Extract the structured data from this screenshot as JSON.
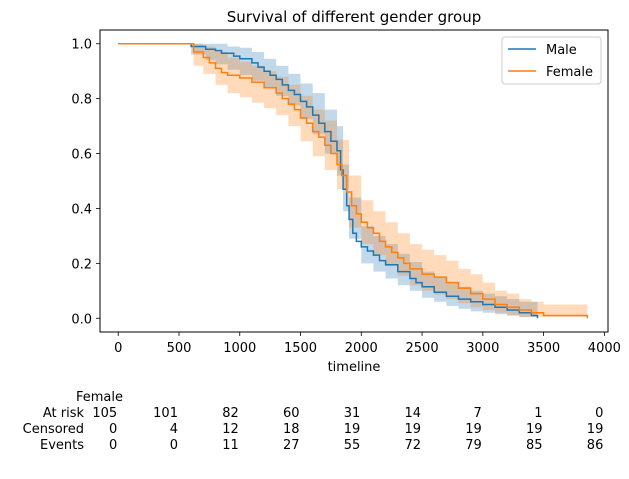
{
  "chart_data": {
    "type": "line",
    "subtype": "kaplan-meier survival",
    "title": "Survival of different gender group",
    "xlabel": "timeline",
    "ylabel": "",
    "xlim": [
      -150,
      4030
    ],
    "ylim": [
      -0.05,
      1.05
    ],
    "xticks": [
      0,
      500,
      1000,
      1500,
      2000,
      2500,
      3000,
      3500,
      4000
    ],
    "yticks": [
      0.0,
      0.2,
      0.4,
      0.6,
      0.8,
      1.0
    ],
    "grid": false,
    "legend_position": "top-right",
    "series": [
      {
        "name": "Male",
        "color": "#1f77b4",
        "band_color": "#1f77b4",
        "points": [
          [
            0,
            1.0
          ],
          [
            580,
            1.0
          ],
          [
            600,
            0.99
          ],
          [
            700,
            0.99
          ],
          [
            720,
            0.98
          ],
          [
            800,
            0.975
          ],
          [
            850,
            0.965
          ],
          [
            950,
            0.955
          ],
          [
            1000,
            0.945
          ],
          [
            1100,
            0.93
          ],
          [
            1150,
            0.915
          ],
          [
            1200,
            0.9
          ],
          [
            1250,
            0.885
          ],
          [
            1300,
            0.87
          ],
          [
            1350,
            0.85
          ],
          [
            1400,
            0.83
          ],
          [
            1450,
            0.815
          ],
          [
            1500,
            0.79
          ],
          [
            1550,
            0.77
          ],
          [
            1600,
            0.74
          ],
          [
            1650,
            0.71
          ],
          [
            1700,
            0.68
          ],
          [
            1750,
            0.645
          ],
          [
            1800,
            0.61
          ],
          [
            1830,
            0.54
          ],
          [
            1850,
            0.47
          ],
          [
            1880,
            0.41
          ],
          [
            1900,
            0.36
          ],
          [
            1930,
            0.31
          ],
          [
            1960,
            0.28
          ],
          [
            2000,
            0.26
          ],
          [
            2050,
            0.245
          ],
          [
            2100,
            0.23
          ],
          [
            2150,
            0.21
          ],
          [
            2200,
            0.195
          ],
          [
            2300,
            0.17
          ],
          [
            2400,
            0.145
          ],
          [
            2450,
            0.13
          ],
          [
            2500,
            0.115
          ],
          [
            2600,
            0.095
          ],
          [
            2700,
            0.08
          ],
          [
            2800,
            0.07
          ],
          [
            2900,
            0.06
          ],
          [
            3000,
            0.05
          ],
          [
            3100,
            0.04
          ],
          [
            3200,
            0.03
          ],
          [
            3300,
            0.02
          ],
          [
            3400,
            0.01
          ],
          [
            3450,
            0.0
          ]
        ],
        "ci_upper": [
          [
            0,
            1.0
          ],
          [
            580,
            1.0
          ],
          [
            600,
            1.0
          ],
          [
            720,
            1.0
          ],
          [
            800,
            1.0
          ],
          [
            900,
            0.99
          ],
          [
            1000,
            0.985
          ],
          [
            1100,
            0.97
          ],
          [
            1200,
            0.945
          ],
          [
            1300,
            0.92
          ],
          [
            1400,
            0.89
          ],
          [
            1500,
            0.855
          ],
          [
            1600,
            0.82
          ],
          [
            1700,
            0.76
          ],
          [
            1800,
            0.7
          ],
          [
            1850,
            0.56
          ],
          [
            1900,
            0.44
          ],
          [
            2000,
            0.335
          ],
          [
            2100,
            0.3
          ],
          [
            2200,
            0.27
          ],
          [
            2300,
            0.235
          ],
          [
            2400,
            0.205
          ],
          [
            2500,
            0.17
          ],
          [
            2600,
            0.15
          ],
          [
            2700,
            0.13
          ],
          [
            2800,
            0.115
          ],
          [
            2900,
            0.1
          ],
          [
            3000,
            0.09
          ],
          [
            3100,
            0.08
          ],
          [
            3200,
            0.07
          ],
          [
            3300,
            0.06
          ],
          [
            3450,
            0.05
          ]
        ],
        "ci_lower": [
          [
            0,
            1.0
          ],
          [
            580,
            1.0
          ],
          [
            600,
            0.96
          ],
          [
            720,
            0.94
          ],
          [
            800,
            0.925
          ],
          [
            900,
            0.905
          ],
          [
            1000,
            0.885
          ],
          [
            1100,
            0.865
          ],
          [
            1200,
            0.84
          ],
          [
            1300,
            0.81
          ],
          [
            1400,
            0.775
          ],
          [
            1500,
            0.725
          ],
          [
            1600,
            0.67
          ],
          [
            1700,
            0.6
          ],
          [
            1800,
            0.52
          ],
          [
            1850,
            0.39
          ],
          [
            1900,
            0.29
          ],
          [
            2000,
            0.2
          ],
          [
            2100,
            0.17
          ],
          [
            2200,
            0.145
          ],
          [
            2300,
            0.12
          ],
          [
            2400,
            0.1
          ],
          [
            2500,
            0.075
          ],
          [
            2600,
            0.06
          ],
          [
            2700,
            0.045
          ],
          [
            2800,
            0.035
          ],
          [
            2900,
            0.025
          ],
          [
            3000,
            0.02
          ],
          [
            3100,
            0.015
          ],
          [
            3200,
            0.01
          ],
          [
            3300,
            0.005
          ],
          [
            3450,
            0.0
          ]
        ]
      },
      {
        "name": "Female",
        "color": "#ff7f0e",
        "band_color": "#ff7f0e",
        "points": [
          [
            0,
            1.0
          ],
          [
            600,
            1.0
          ],
          [
            620,
            0.97
          ],
          [
            700,
            0.95
          ],
          [
            750,
            0.93
          ],
          [
            800,
            0.91
          ],
          [
            850,
            0.895
          ],
          [
            900,
            0.885
          ],
          [
            1000,
            0.875
          ],
          [
            1100,
            0.86
          ],
          [
            1200,
            0.84
          ],
          [
            1300,
            0.82
          ],
          [
            1350,
            0.8
          ],
          [
            1400,
            0.78
          ],
          [
            1450,
            0.76
          ],
          [
            1500,
            0.73
          ],
          [
            1550,
            0.71
          ],
          [
            1600,
            0.68
          ],
          [
            1650,
            0.66
          ],
          [
            1700,
            0.63
          ],
          [
            1750,
            0.6
          ],
          [
            1800,
            0.56
          ],
          [
            1840,
            0.52
          ],
          [
            1880,
            0.46
          ],
          [
            1920,
            0.41
          ],
          [
            1960,
            0.38
          ],
          [
            2000,
            0.35
          ],
          [
            2050,
            0.33
          ],
          [
            2100,
            0.31
          ],
          [
            2150,
            0.28
          ],
          [
            2200,
            0.26
          ],
          [
            2250,
            0.24
          ],
          [
            2300,
            0.22
          ],
          [
            2350,
            0.2
          ],
          [
            2400,
            0.18
          ],
          [
            2500,
            0.16
          ],
          [
            2600,
            0.15
          ],
          [
            2700,
            0.13
          ],
          [
            2800,
            0.11
          ],
          [
            2900,
            0.09
          ],
          [
            3000,
            0.07
          ],
          [
            3100,
            0.05
          ],
          [
            3200,
            0.04
          ],
          [
            3300,
            0.03
          ],
          [
            3400,
            0.02
          ],
          [
            3500,
            0.01
          ],
          [
            3850,
            0.01
          ],
          [
            3860,
            0.0
          ]
        ],
        "ci_upper": [
          [
            0,
            1.0
          ],
          [
            600,
            1.0
          ],
          [
            620,
            1.0
          ],
          [
            700,
            0.99
          ],
          [
            800,
            0.97
          ],
          [
            900,
            0.95
          ],
          [
            1000,
            0.935
          ],
          [
            1100,
            0.92
          ],
          [
            1200,
            0.9
          ],
          [
            1300,
            0.88
          ],
          [
            1400,
            0.85
          ],
          [
            1500,
            0.81
          ],
          [
            1600,
            0.76
          ],
          [
            1700,
            0.72
          ],
          [
            1800,
            0.65
          ],
          [
            1900,
            0.52
          ],
          [
            2000,
            0.43
          ],
          [
            2100,
            0.39
          ],
          [
            2200,
            0.35
          ],
          [
            2300,
            0.31
          ],
          [
            2400,
            0.27
          ],
          [
            2500,
            0.25
          ],
          [
            2600,
            0.23
          ],
          [
            2700,
            0.21
          ],
          [
            2800,
            0.18
          ],
          [
            2900,
            0.16
          ],
          [
            3000,
            0.13
          ],
          [
            3100,
            0.1
          ],
          [
            3200,
            0.09
          ],
          [
            3300,
            0.07
          ],
          [
            3400,
            0.06
          ],
          [
            3500,
            0.05
          ],
          [
            3860,
            0.05
          ]
        ],
        "ci_lower": [
          [
            0,
            1.0
          ],
          [
            600,
            1.0
          ],
          [
            620,
            0.92
          ],
          [
            700,
            0.89
          ],
          [
            800,
            0.85
          ],
          [
            900,
            0.82
          ],
          [
            1000,
            0.805
          ],
          [
            1100,
            0.785
          ],
          [
            1200,
            0.765
          ],
          [
            1300,
            0.74
          ],
          [
            1400,
            0.7
          ],
          [
            1500,
            0.645
          ],
          [
            1600,
            0.59
          ],
          [
            1700,
            0.54
          ],
          [
            1800,
            0.47
          ],
          [
            1900,
            0.33
          ],
          [
            2000,
            0.27
          ],
          [
            2100,
            0.23
          ],
          [
            2200,
            0.19
          ],
          [
            2300,
            0.155
          ],
          [
            2400,
            0.12
          ],
          [
            2500,
            0.1
          ],
          [
            2600,
            0.085
          ],
          [
            2700,
            0.07
          ],
          [
            2800,
            0.055
          ],
          [
            2900,
            0.04
          ],
          [
            3000,
            0.03
          ],
          [
            3100,
            0.02
          ],
          [
            3200,
            0.01
          ],
          [
            3300,
            0.005
          ],
          [
            3860,
            0.0
          ]
        ]
      }
    ],
    "at_risk_table": {
      "group": "Female",
      "columns_x": [
        0,
        500,
        1000,
        1500,
        2000,
        2500,
        3000,
        3500,
        4000
      ],
      "rows": [
        {
          "label": "At risk",
          "values": [
            "105",
            "101",
            "82",
            "60",
            "31",
            "14",
            "7",
            "1",
            "0"
          ]
        },
        {
          "label": "Censored",
          "values": [
            "0",
            "4",
            "12",
            "18",
            "19",
            "19",
            "19",
            "19",
            "19"
          ]
        },
        {
          "label": "Events",
          "values": [
            "0",
            "0",
            "11",
            "27",
            "55",
            "72",
            "79",
            "85",
            "86"
          ]
        }
      ]
    }
  }
}
